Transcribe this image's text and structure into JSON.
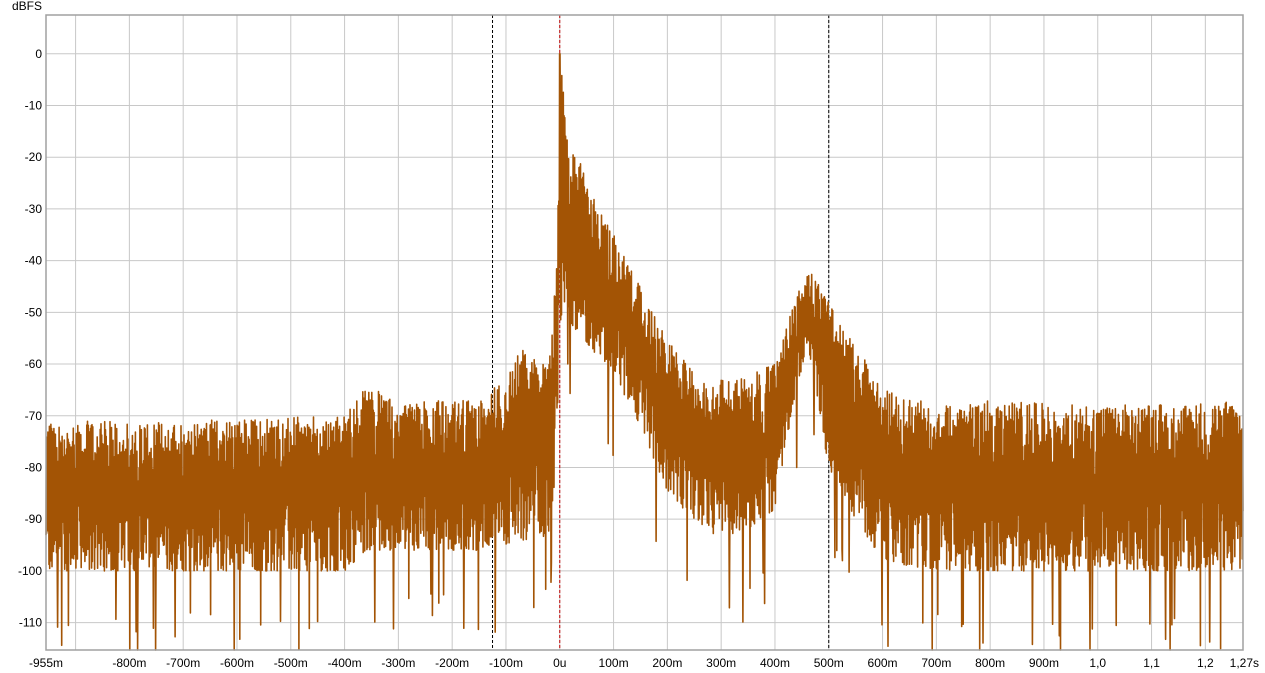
{
  "chart_data": {
    "type": "line",
    "ylabel": "dBFS",
    "xlabel": "",
    "x_unit": "ms",
    "xlim": [
      -955,
      1270
    ],
    "ylim": [
      -115.3,
      7.5
    ],
    "grid": true,
    "x_ticks": [
      {
        "v": -955,
        "label": "-955m"
      },
      {
        "v": -900,
        "label": ""
      },
      {
        "v": -800,
        "label": "-800m"
      },
      {
        "v": -700,
        "label": "-700m"
      },
      {
        "v": -600,
        "label": "-600m"
      },
      {
        "v": -500,
        "label": "-500m"
      },
      {
        "v": -400,
        "label": "-400m"
      },
      {
        "v": -300,
        "label": "-300m"
      },
      {
        "v": -200,
        "label": "-200m"
      },
      {
        "v": -100,
        "label": "-100m"
      },
      {
        "v": 0,
        "label": "0u"
      },
      {
        "v": 100,
        "label": "100m"
      },
      {
        "v": 200,
        "label": "200m"
      },
      {
        "v": 300,
        "label": "300m"
      },
      {
        "v": 400,
        "label": "400m"
      },
      {
        "v": 500,
        "label": "500m"
      },
      {
        "v": 600,
        "label": "600m"
      },
      {
        "v": 700,
        "label": "700m"
      },
      {
        "v": 800,
        "label": "800m"
      },
      {
        "v": 900,
        "label": "900m"
      },
      {
        "v": 1000,
        "label": "1,0"
      },
      {
        "v": 1100,
        "label": "1,1"
      },
      {
        "v": 1200,
        "label": "1,2"
      },
      {
        "v": 1270,
        "label": "1,27s"
      }
    ],
    "y_ticks": [
      0,
      -10,
      -20,
      -30,
      -40,
      -50,
      -60,
      -70,
      -80,
      -90,
      -100,
      -110
    ],
    "markers": [
      {
        "x": -125,
        "color": "#000000",
        "style": "dashed"
      },
      {
        "x": 0,
        "color": "#c00000",
        "style": "dashed"
      },
      {
        "x": 500,
        "color": "#000000",
        "style": "dashed"
      }
    ],
    "series": [
      {
        "color": "#a35405",
        "envelope_x": [
          -955,
          -700,
          -400,
          -360,
          -300,
          -150,
          -125,
          -70,
          -20,
          -5,
          0,
          10,
          20,
          50,
          100,
          150,
          200,
          250,
          300,
          350,
          400,
          430,
          460,
          500,
          550,
          600,
          700,
          800,
          1000,
          1270
        ],
        "envelope_upper": [
          -71,
          -71,
          -70,
          -64,
          -67,
          -67,
          -65,
          -57,
          -60,
          -40,
          0,
          -10,
          -15,
          -25,
          -35,
          -45,
          -55,
          -62,
          -63,
          -62,
          -60,
          -50,
          -41,
          -48,
          -56,
          -65,
          -68,
          -67,
          -68,
          -67
        ],
        "envelope_lower": [
          -100,
          -100,
          -100,
          -96,
          -96,
          -96,
          -95,
          -95,
          -93,
          -80,
          -52,
          -50,
          -52,
          -56,
          -62,
          -72,
          -85,
          -90,
          -94,
          -92,
          -88,
          -70,
          -56,
          -80,
          -90,
          -98,
          -100,
          -100,
          -100,
          -100
        ]
      }
    ]
  }
}
